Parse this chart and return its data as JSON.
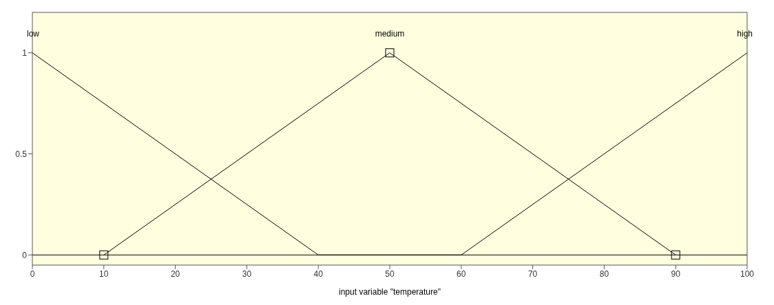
{
  "chart_data": {
    "type": "line",
    "xlabel": "input variable \"temperature\"",
    "legend": false,
    "grid": false,
    "xlim": [
      0,
      100
    ],
    "ylim": [
      -0.05,
      1.2
    ],
    "xticks": [
      0,
      10,
      20,
      30,
      40,
      50,
      60,
      70,
      80,
      90,
      100
    ],
    "yticks": [
      0,
      0.5,
      1
    ],
    "line_style": "solid",
    "series": [
      {
        "name": "low",
        "color": "#000000",
        "x": [
          0,
          40,
          100
        ],
        "values": [
          1,
          0,
          0
        ],
        "marker": "none"
      },
      {
        "name": "medium",
        "color": "#000000",
        "x": [
          10,
          50,
          90
        ],
        "values": [
          0,
          1,
          0
        ],
        "marker": "square"
      },
      {
        "name": "high",
        "color": "#000000",
        "x": [
          0,
          60,
          100
        ],
        "values": [
          0,
          0,
          1
        ],
        "marker": "none"
      }
    ]
  }
}
